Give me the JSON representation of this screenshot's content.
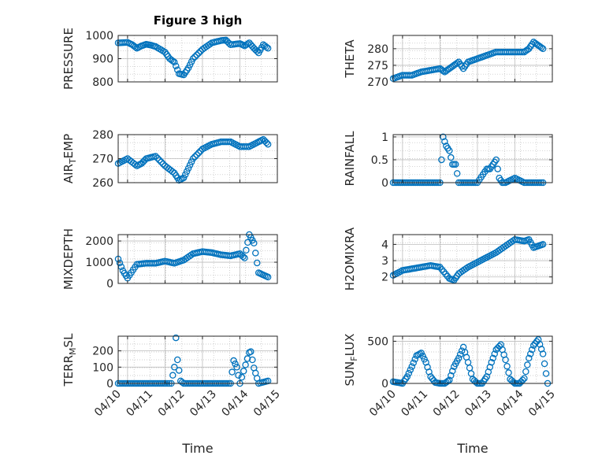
{
  "figure": {
    "title": "Figure 3 high",
    "background": "#ffffff"
  },
  "colors": {
    "marker": "#0072BD",
    "axis": "#262626",
    "grid": "#bdbdbd"
  },
  "chart_data": [
    {
      "type": "scatter",
      "id": "pressure",
      "title": "Figure 3 high",
      "ylabel": "PRESSURE",
      "xlabel": "",
      "xlim": [
        "04/10",
        "04/15"
      ],
      "ylim": [
        800,
        1000
      ],
      "yticks": [
        800,
        900,
        1000
      ],
      "xtick_labels": [],
      "grid": "on",
      "marker": "open-circle",
      "x": [
        "04/10 18:00",
        "04/11 00:00",
        "04/11 03:00",
        "04/11 06:00",
        "04/11 09:00",
        "04/11 12:00",
        "04/11 15:00",
        "04/11 18:00",
        "04/12 00:00",
        "04/12 03:00",
        "04/12 06:00",
        "04/12 09:00",
        "04/12 12:00",
        "04/12 15:00",
        "04/12 18:00",
        "04/13 00:00",
        "04/13 06:00",
        "04/13 12:00",
        "04/13 15:00",
        "04/13 18:00",
        "04/14 00:00",
        "04/14 03:00",
        "04/14 06:00",
        "04/14 09:00",
        "04/14 12:00",
        "04/14 15:00",
        "04/14 18:00"
      ],
      "y": [
        968,
        970,
        960,
        945,
        955,
        962,
        958,
        952,
        928,
        900,
        885,
        835,
        830,
        860,
        900,
        940,
        968,
        978,
        980,
        960,
        965,
        955,
        968,
        945,
        925,
        960,
        945
      ]
    },
    {
      "type": "scatter",
      "id": "theta",
      "ylabel": "THETA",
      "xlabel": "",
      "xlim": [
        "04/10",
        "04/15"
      ],
      "ylim": [
        270,
        284
      ],
      "yticks": [
        270,
        275,
        280
      ],
      "xtick_labels": [],
      "grid": "on",
      "marker": "open-circle",
      "x": [
        "04/10 18:00",
        "04/11 00:00",
        "04/11 06:00",
        "04/11 12:00",
        "04/11 18:00",
        "04/12 00:00",
        "04/12 03:00",
        "04/12 06:00",
        "04/12 09:00",
        "04/12 12:00",
        "04/12 15:00",
        "04/12 18:00",
        "04/13 00:00",
        "04/13 06:00",
        "04/13 12:00",
        "04/13 18:00",
        "04/14 00:00",
        "04/14 06:00",
        "04/14 09:00",
        "04/14 12:00",
        "04/14 15:00",
        "04/14 18:00"
      ],
      "y": [
        271,
        272,
        272,
        273,
        273.5,
        274,
        273,
        274,
        275,
        276,
        274,
        276,
        277,
        278,
        279,
        279,
        279,
        279,
        280,
        282,
        281,
        280
      ]
    },
    {
      "type": "scatter",
      "id": "air_temp",
      "ylabel": "AIR_TEMP",
      "ylabel_main": "AIR",
      "ylabel_sub": "T",
      "ylabel_rest": "EMP",
      "xlabel": "",
      "xlim": [
        "04/10",
        "04/15"
      ],
      "ylim": [
        260,
        280
      ],
      "yticks": [
        260,
        270,
        280
      ],
      "xtick_labels": [],
      "grid": "on",
      "marker": "open-circle",
      "x": [
        "04/10 18:00",
        "04/11 00:00",
        "04/11 06:00",
        "04/11 09:00",
        "04/11 12:00",
        "04/11 18:00",
        "04/12 00:00",
        "04/12 06:00",
        "04/12 09:00",
        "04/12 12:00",
        "04/12 15:00",
        "04/12 18:00",
        "04/13 00:00",
        "04/13 06:00",
        "04/13 12:00",
        "04/13 18:00",
        "04/14 00:00",
        "04/14 06:00",
        "04/14 12:00",
        "04/14 15:00",
        "04/14 18:00"
      ],
      "y": [
        268,
        270,
        267,
        268,
        270,
        271,
        267,
        264,
        261,
        262,
        266,
        270,
        274,
        276,
        277,
        277,
        275,
        275,
        277,
        278,
        276
      ]
    },
    {
      "type": "scatter",
      "id": "rainfall",
      "ylabel": "RAINFALL",
      "xlabel": "",
      "xlim": [
        "04/10",
        "04/15"
      ],
      "ylim": [
        0,
        1.05
      ],
      "yticks": [
        0,
        0.5,
        1
      ],
      "ytick_labels": [
        "0",
        "0.5",
        "1"
      ],
      "xtick_labels": [],
      "grid": "on",
      "marker": "open-circle",
      "x": [
        "04/10 18:00",
        "04/11 06:00",
        "04/11 12:00",
        "04/11 18:00",
        "04/12 00:00",
        "04/12 02:00",
        "04/12 04:00",
        "04/12 06:00",
        "04/12 08:00",
        "04/12 10:00",
        "04/12 12:00",
        "04/12 18:00",
        "04/13 00:00",
        "04/13 06:00",
        "04/13 08:00",
        "04/13 10:00",
        "04/13 12:00",
        "04/13 14:00",
        "04/13 16:00",
        "04/13 18:00",
        "04/14 00:00",
        "04/14 06:00",
        "04/14 12:00",
        "04/14 18:00"
      ],
      "y": [
        0,
        0,
        0,
        0,
        0,
        1,
        0.8,
        0.7,
        0.4,
        0.4,
        0,
        0,
        0,
        0.3,
        0.3,
        0.4,
        0.5,
        0.1,
        0,
        0,
        0.1,
        0,
        0,
        0
      ]
    },
    {
      "type": "scatter",
      "id": "mixdepth",
      "ylabel": "MIXDEPTH",
      "xlabel": "",
      "xlim": [
        "04/10",
        "04/15"
      ],
      "ylim": [
        0,
        2300
      ],
      "yticks": [
        0,
        1000,
        2000
      ],
      "xtick_labels": [],
      "grid": "on",
      "marker": "open-circle",
      "x": [
        "04/10 18:00",
        "04/10 21:00",
        "04/11 00:00",
        "04/11 06:00",
        "04/11 12:00",
        "04/11 18:00",
        "04/12 00:00",
        "04/12 06:00",
        "04/12 12:00",
        "04/12 18:00",
        "04/13 00:00",
        "04/13 06:00",
        "04/13 12:00",
        "04/13 18:00",
        "04/14 00:00",
        "04/14 03:00",
        "04/14 06:00",
        "04/14 09:00",
        "04/14 12:00",
        "04/14 15:00",
        "04/14 18:00"
      ],
      "y": [
        1150,
        600,
        250,
        900,
        950,
        950,
        1050,
        950,
        1100,
        1400,
        1500,
        1450,
        1350,
        1300,
        1400,
        1200,
        2300,
        1900,
        500,
        400,
        300
      ]
    },
    {
      "type": "scatter",
      "id": "h2omixra",
      "ylabel": "H2OMIXRA",
      "xlabel": "",
      "xlim": [
        "04/10",
        "04/15"
      ],
      "ylim": [
        1.6,
        4.6
      ],
      "yticks": [
        2,
        3,
        4
      ],
      "xtick_labels": [],
      "grid": "on",
      "marker": "open-circle",
      "x": [
        "04/10 18:00",
        "04/11 00:00",
        "04/11 06:00",
        "04/11 12:00",
        "04/11 18:00",
        "04/12 00:00",
        "04/12 06:00",
        "04/12 09:00",
        "04/12 12:00",
        "04/12 18:00",
        "04/13 00:00",
        "04/13 06:00",
        "04/13 12:00",
        "04/13 18:00",
        "04/14 00:00",
        "04/14 06:00",
        "04/14 09:00",
        "04/14 12:00",
        "04/14 15:00",
        "04/14 18:00"
      ],
      "y": [
        2.1,
        2.4,
        2.5,
        2.6,
        2.7,
        2.6,
        1.9,
        1.8,
        2.2,
        2.6,
        2.9,
        3.2,
        3.5,
        3.9,
        4.3,
        4.2,
        4.3,
        3.8,
        3.9,
        4.0
      ]
    },
    {
      "type": "scatter",
      "id": "terr_msl",
      "ylabel": "TERR_MSL",
      "ylabel_main": "TERR",
      "ylabel_sub": "M",
      "ylabel_rest": "SL",
      "xlabel": "Time",
      "xlim": [
        "04/10",
        "04/15"
      ],
      "ylim": [
        0,
        290
      ],
      "yticks": [
        0,
        100,
        200
      ],
      "xtick_labels": [
        "04/10",
        "04/11",
        "04/12",
        "04/13",
        "04/14",
        "04/15"
      ],
      "grid": "on",
      "marker": "open-circle",
      "x": [
        "04/10 18:00",
        "04/11 00:00",
        "04/11 06:00",
        "04/11 12:00",
        "04/11 18:00",
        "04/12 00:00",
        "04/12 04:00",
        "04/12 06:00",
        "04/12 07:00",
        "04/12 08:00",
        "04/12 10:00",
        "04/12 12:00",
        "04/12 18:00",
        "04/13 00:00",
        "04/13 06:00",
        "04/13 12:00",
        "04/13 18:00",
        "04/13 20:00",
        "04/13 22:00",
        "04/14 00:00",
        "04/14 06:00",
        "04/14 07:00",
        "04/14 09:00",
        "04/14 12:00",
        "04/14 18:00"
      ],
      "y": [
        0,
        0,
        0,
        0,
        0,
        0,
        0,
        100,
        280,
        145,
        15,
        0,
        0,
        0,
        0,
        0,
        0,
        140,
        100,
        0,
        190,
        195,
        95,
        0,
        15
      ]
    },
    {
      "type": "scatter",
      "id": "sun_flux",
      "ylabel": "SUN_FLUX",
      "ylabel_main": "SUN",
      "ylabel_sub": "F",
      "ylabel_rest": "LUX",
      "xlabel": "Time",
      "xlim": [
        "04/10",
        "04/15"
      ],
      "ylim": [
        0,
        560
      ],
      "yticks": [
        0,
        500
      ],
      "xtick_labels": [
        "04/10",
        "04/11",
        "04/12",
        "04/13",
        "04/14",
        "04/15"
      ],
      "grid": "on",
      "marker": "open-circle",
      "x": [
        "04/10 18:00",
        "04/10 21:00",
        "04/11 00:00",
        "04/11 03:00",
        "04/11 06:00",
        "04/11 09:00",
        "04/11 12:00",
        "04/11 15:00",
        "04/11 18:00",
        "04/11 21:00",
        "04/12 00:00",
        "04/12 03:00",
        "04/12 06:00",
        "04/12 09:00",
        "04/12 12:00",
        "04/12 15:00",
        "04/12 18:00",
        "04/12 21:00",
        "04/13 00:00",
        "04/13 03:00",
        "04/13 06:00",
        "04/13 09:00",
        "04/13 12:00",
        "04/13 15:00",
        "04/13 18:00",
        "04/13 21:00",
        "04/14 00:00",
        "04/14 03:00",
        "04/14 06:00",
        "04/14 09:00",
        "04/14 12:00",
        "04/14 15:00",
        "04/14 18:00",
        "04/14 21:00"
      ],
      "y": [
        20,
        10,
        0,
        80,
        200,
        330,
        360,
        250,
        80,
        10,
        0,
        0,
        40,
        200,
        300,
        430,
        250,
        50,
        0,
        0,
        80,
        250,
        400,
        460,
        280,
        50,
        0,
        0,
        60,
        300,
        450,
        520,
        350,
        0
      ]
    }
  ]
}
